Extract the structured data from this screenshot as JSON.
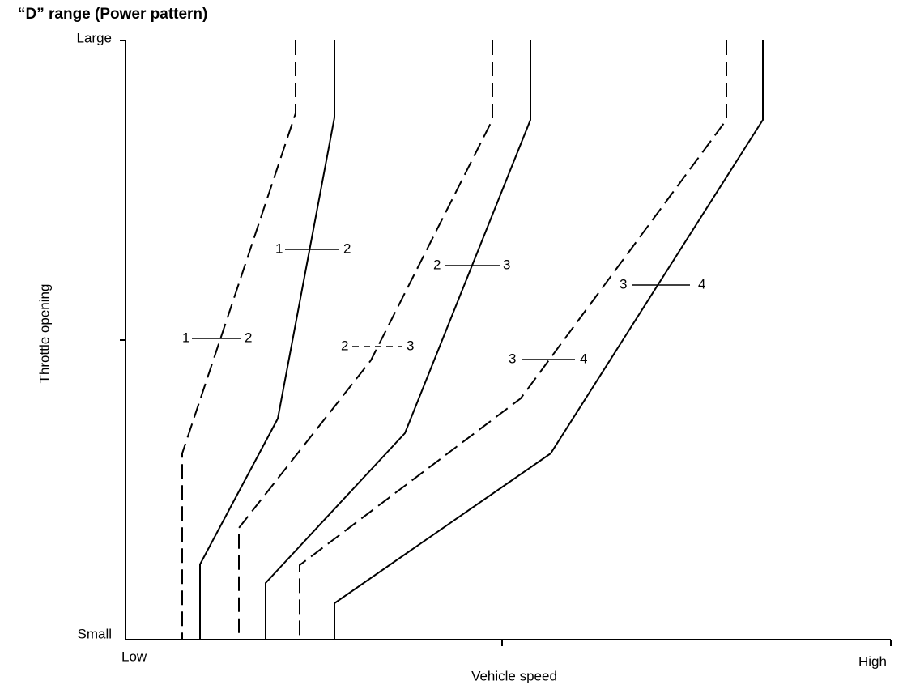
{
  "title": "“D” range  (Power pattern)",
  "y_axis": {
    "label": "Throttle opening",
    "top": "Large",
    "bottom": "Small"
  },
  "x_axis": {
    "label": "Vehicle speed",
    "left": "Low",
    "right": "High"
  },
  "shift_labels": [
    {
      "from": "1",
      "to": "2"
    },
    {
      "from": "1",
      "to": "2"
    },
    {
      "from": "2",
      "to": "3"
    },
    {
      "from": "2",
      "to": "3"
    },
    {
      "from": "3",
      "to": "4"
    },
    {
      "from": "3",
      "to": "4"
    }
  ]
}
